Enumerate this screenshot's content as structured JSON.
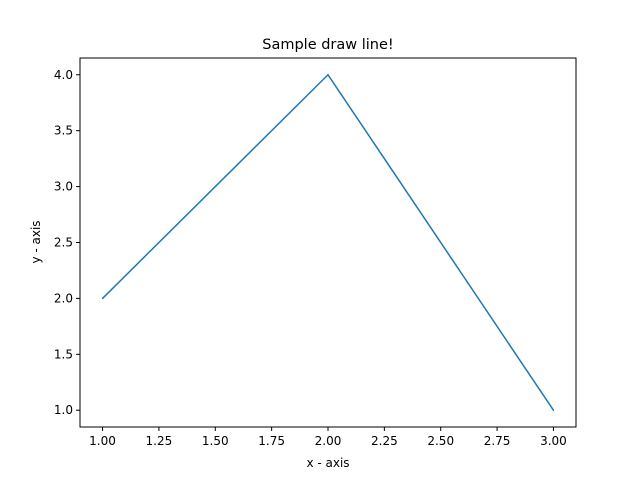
{
  "chart_data": {
    "type": "line",
    "title": "Sample draw line!",
    "xlabel": "x - axis",
    "ylabel": "y - axis",
    "x": [
      1,
      2,
      3
    ],
    "series": [
      {
        "values": [
          2,
          4,
          1
        ],
        "color": "#1f77b4"
      }
    ],
    "xlim": [
      0.9,
      3.1
    ],
    "ylim": [
      0.85,
      4.15
    ],
    "xticks": [
      1.0,
      1.25,
      1.5,
      1.75,
      2.0,
      2.25,
      2.5,
      2.75,
      3.0
    ],
    "xtick_labels": [
      "1.00",
      "1.25",
      "1.50",
      "1.75",
      "2.00",
      "2.25",
      "2.50",
      "2.75",
      "3.00"
    ],
    "yticks": [
      1.0,
      1.5,
      2.0,
      2.5,
      3.0,
      3.5,
      4.0
    ],
    "ytick_labels": [
      "1.0",
      "1.5",
      "2.0",
      "2.5",
      "3.0",
      "3.5",
      "4.0"
    ],
    "grid": false,
    "legend": "none"
  }
}
